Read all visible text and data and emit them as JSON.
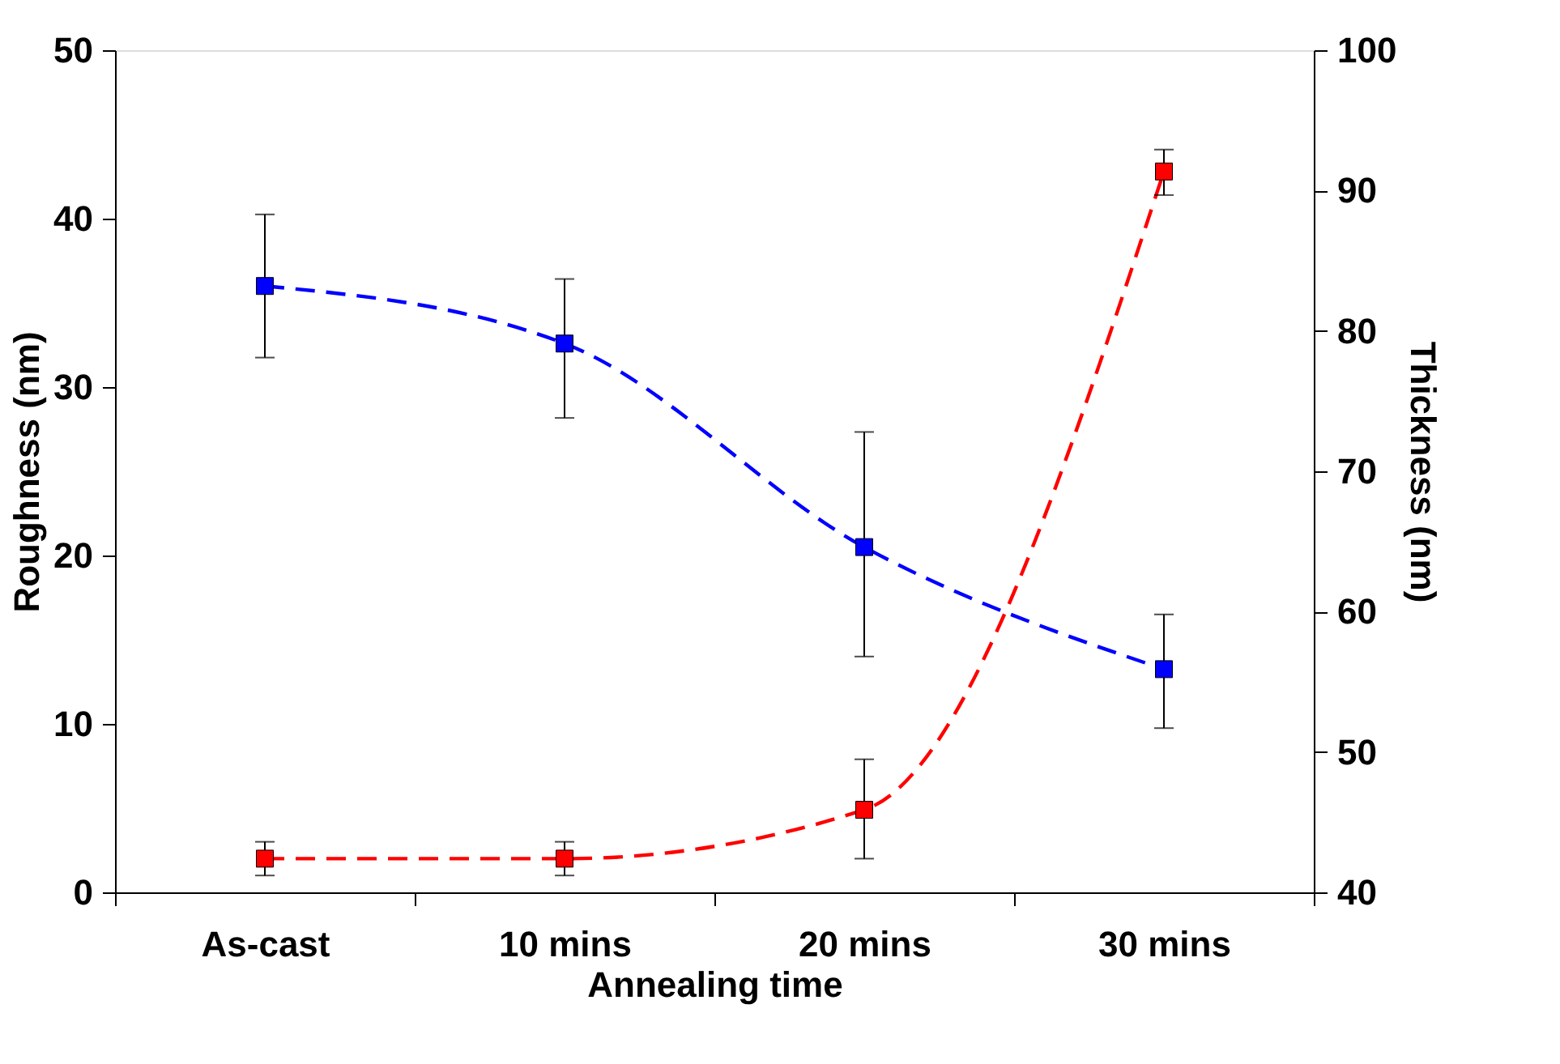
{
  "chart_data": {
    "type": "line",
    "xlabel": "Annealing time",
    "ylabel": "Roughness (nm)",
    "y2label": "Thickness (nm)",
    "categories": [
      "As-cast",
      "10 mins",
      "20 mins",
      "30 mins"
    ],
    "ylim": [
      0,
      50
    ],
    "yticks": [
      0,
      10,
      20,
      30,
      40,
      50
    ],
    "y2lim": [
      40,
      100
    ],
    "y2ticks": [
      40,
      50,
      60,
      70,
      80,
      90,
      100
    ],
    "grid": false,
    "marker": "square",
    "line_style": "dashed",
    "series": [
      {
        "color": "#ff0000",
        "values": [
          2,
          2,
          4.9,
          42.8
        ],
        "errors": [
          [
            1,
            3
          ],
          [
            1,
            3
          ],
          [
            2,
            7.9
          ],
          [
            41.4,
            44.1
          ]
        ]
      },
      {
        "color": "#0000ff",
        "axis": "y2",
        "values": [
          83.2,
          79.1,
          64.6,
          55.9
        ],
        "errors": [
          [
            78.1,
            88.3
          ],
          [
            73.8,
            83.7
          ],
          [
            56.8,
            72.8
          ],
          [
            51.7,
            59.8
          ]
        ]
      }
    ]
  }
}
